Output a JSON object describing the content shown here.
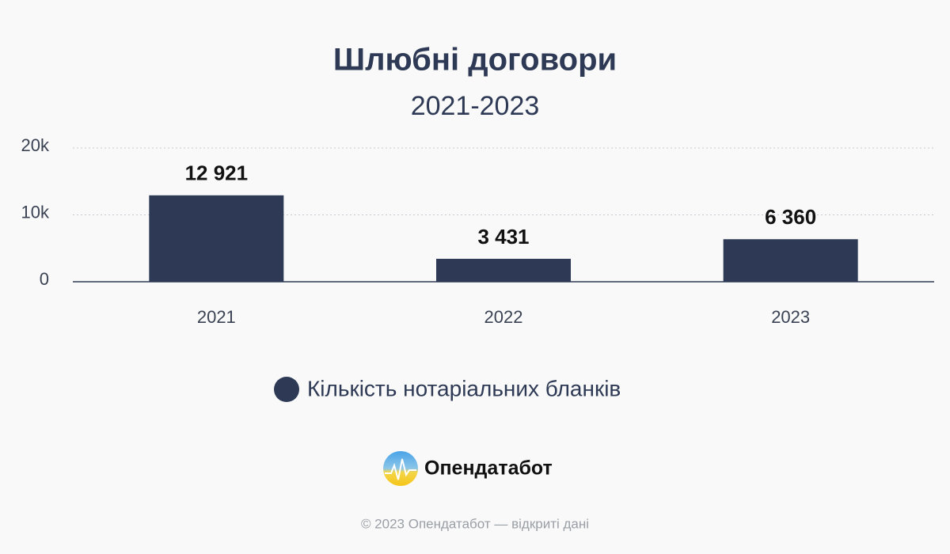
{
  "chart_data": {
    "type": "bar",
    "title": "Шлюбні договори",
    "subtitle": "2021-2023",
    "categories": [
      "2021",
      "2022",
      "2023"
    ],
    "series": [
      {
        "name": "Кількість нотаріальних бланків",
        "color": "#2e3a55",
        "values": [
          12921,
          3431,
          6360
        ],
        "value_labels": [
          "12 921",
          "3 431",
          "6 360"
        ]
      }
    ],
    "ylim": [
      0,
      20000
    ],
    "yticks": [
      0,
      {
        "value": 10000,
        "label": "10k"
      },
      {
        "value": 20000,
        "label": "20k"
      }
    ],
    "grid": true
  },
  "logo": "Опендатабот",
  "footer": "© 2023 Опендатабот — відкриті дані"
}
